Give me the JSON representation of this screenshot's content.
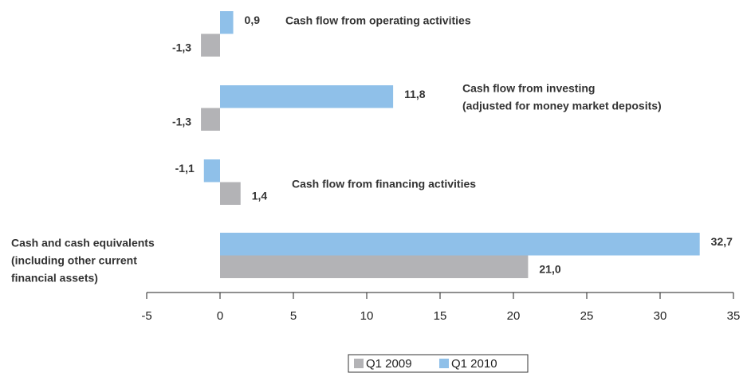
{
  "chart_data": {
    "type": "hbar",
    "categories": [
      [
        "Cash flow from operating activities"
      ],
      [
        "Cash flow from investing",
        "(adjusted for money market deposits)"
      ],
      [
        "Cash flow from financing activities"
      ],
      [
        "Cash and cash equivalents",
        "(including other current",
        "financial assets)"
      ]
    ],
    "series": [
      {
        "name": "Q1 2009",
        "color": "#b3b3b6",
        "values": [
          -1.3,
          -1.3,
          1.4,
          21.0
        ],
        "value_labels": [
          "-1,3",
          "-1,3",
          "1,4",
          "21,0"
        ]
      },
      {
        "name": "Q1 2010",
        "color": "#8fc0e9",
        "values": [
          0.9,
          11.8,
          -1.1,
          32.7
        ],
        "value_labels": [
          "0,9",
          "11,8",
          "-1,1",
          "32,7"
        ]
      }
    ],
    "xlim": [
      -5,
      35
    ],
    "xticks": [
      -5,
      0,
      5,
      10,
      15,
      20,
      25,
      30,
      35
    ],
    "legend": "bottom"
  }
}
